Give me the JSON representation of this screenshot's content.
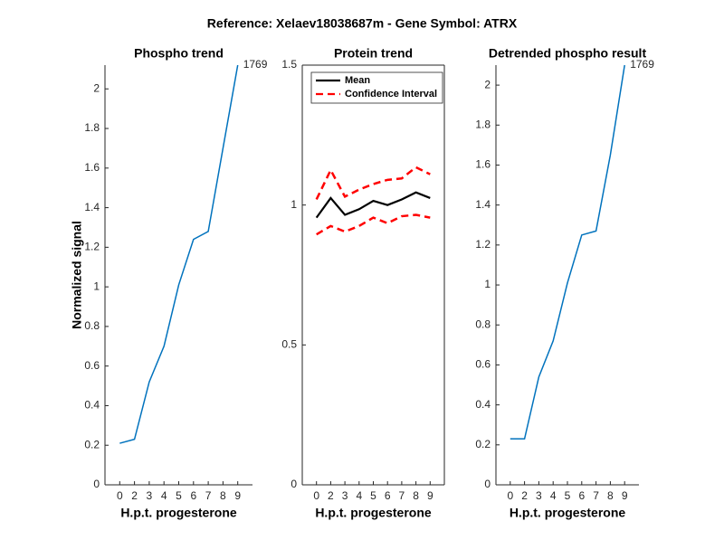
{
  "title": "Reference:  Xelaev18038687m - Gene Symbol:  ATRX",
  "chart_data": [
    {
      "type": "line",
      "title": "Phospho trend",
      "x_label": "H.p.t. progesterone",
      "y_label": "Normalized signal",
      "categories": [
        "0",
        "2",
        "3",
        "4",
        "5",
        "6",
        "7",
        "8",
        "9"
      ],
      "series": [
        {
          "color": "#0072bd",
          "values": [
            0.21,
            0.23,
            0.52,
            0.7,
            1.01,
            1.24,
            1.28,
            1.7,
            2.12
          ]
        }
      ],
      "annotation": "1769",
      "ylim": [
        0,
        2.12
      ],
      "yticks": [
        0,
        0.2,
        0.4,
        0.6,
        0.8,
        1,
        1.2,
        1.4,
        1.6,
        1.8,
        2
      ]
    },
    {
      "type": "line",
      "title": "Protein trend",
      "x_label": "H.p.t. progesterone",
      "categories": [
        "0",
        "2",
        "3",
        "4",
        "5",
        "6",
        "7",
        "8",
        "9"
      ],
      "series": [
        {
          "name": "Mean",
          "color": "#000000",
          "values": [
            0.955,
            1.025,
            0.965,
            0.985,
            1.015,
            1.0,
            1.02,
            1.045,
            1.025
          ]
        },
        {
          "name": "Confidence Interval",
          "color": "#ff0000",
          "dashed": true,
          "upper": [
            1.02,
            1.125,
            1.03,
            1.055,
            1.075,
            1.09,
            1.095,
            1.135,
            1.11
          ],
          "lower": [
            0.895,
            0.925,
            0.905,
            0.925,
            0.955,
            0.935,
            0.96,
            0.965,
            0.955
          ]
        }
      ],
      "legend": "upper-left",
      "ylim": [
        0,
        1.5
      ],
      "yticks": [
        0,
        0.5,
        1,
        1.5
      ]
    },
    {
      "type": "line",
      "title": "Detrended phospho result",
      "x_label": "H.p.t. progesterone",
      "categories": [
        "0",
        "2",
        "3",
        "4",
        "5",
        "6",
        "7",
        "8",
        "9"
      ],
      "series": [
        {
          "color": "#0072bd",
          "values": [
            0.23,
            0.23,
            0.54,
            0.72,
            1.01,
            1.25,
            1.27,
            1.65,
            2.1
          ]
        }
      ],
      "annotation": "1769",
      "ylim": [
        0,
        2.1
      ],
      "yticks": [
        0,
        0.2,
        0.4,
        0.6,
        0.8,
        1,
        1.2,
        1.4,
        1.6,
        1.8,
        2
      ]
    }
  ]
}
